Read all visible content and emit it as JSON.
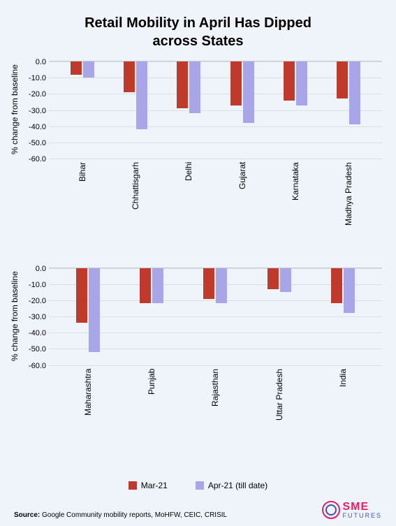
{
  "title_line1": "Retail Mobility in April Has Dipped",
  "title_line2": "across States",
  "background_color": "#eff3fa",
  "y_axis_label": "% change from baseline",
  "y_ticks": [
    "0.0",
    "-10.0",
    "-20.0",
    "-30.0",
    "-40.0",
    "-50.0",
    "-60.0"
  ],
  "y_min": -60,
  "y_max": 0,
  "series": [
    {
      "name": "Mar-21",
      "color": "#c0392b"
    },
    {
      "name": "Apr-21 (till date)",
      "color": "#a8a6e8"
    }
  ],
  "panel1": [
    {
      "label": "Bihar",
      "mar": -8,
      "apr": -10
    },
    {
      "label": "Chhattisgarh",
      "mar": -19,
      "apr": -42
    },
    {
      "label": "Delhi",
      "mar": -29,
      "apr": -32
    },
    {
      "label": "Gujarat",
      "mar": -27,
      "apr": -38
    },
    {
      "label": "Karnataka",
      "mar": -24,
      "apr": -27
    },
    {
      "label": "Madhya Pradesh",
      "mar": -23,
      "apr": -39
    }
  ],
  "panel2": [
    {
      "label": "Maharashtra",
      "mar": -34,
      "apr": -52
    },
    {
      "label": "Punjab",
      "mar": -22,
      "apr": -22
    },
    {
      "label": "Rajasthan",
      "mar": -19,
      "apr": -22
    },
    {
      "label": "Uttar Pradesh",
      "mar": -13,
      "apr": -15
    },
    {
      "label": "India",
      "mar": -22,
      "apr": -28
    }
  ],
  "source_label": "Source:",
  "source_text": " Google Community mobility reports, MoHFW, CEIC, CRISIL",
  "logo": {
    "sme": "SME",
    "futures": "FUTURES"
  }
}
